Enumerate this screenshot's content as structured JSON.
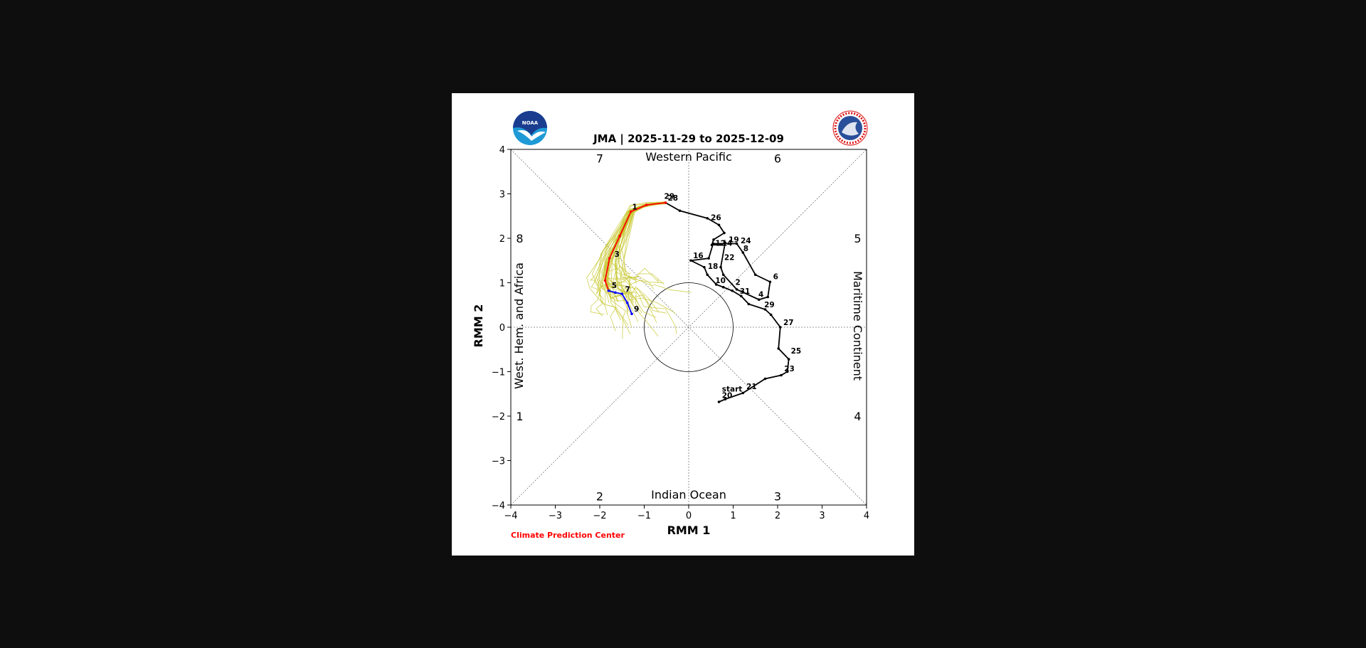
{
  "title": "JMA | 2025-11-29 to 2025-12-09",
  "credit": "Climate Prediction Center",
  "logos": {
    "left": "noaa-logo",
    "left_text": "NOAA",
    "right": "nws-logo",
    "right_text": "NATIONAL WEATHER SERVICE"
  },
  "colors": {
    "observed": "#000000",
    "ensemble": "#c8c832",
    "forecast_early": "#ff0000",
    "forecast_late": "#0000ff",
    "credit": "#ff0000"
  },
  "chart_data": {
    "type": "line",
    "title": "JMA | 2025-11-29 to 2025-12-09",
    "xlabel": "RMM 1",
    "ylabel": "RMM 2",
    "xlim": [
      -4,
      4
    ],
    "ylim": [
      -4,
      4
    ],
    "xticks": [
      "−4",
      "−3",
      "−2",
      "−1",
      "0",
      "1",
      "2",
      "3",
      "4"
    ],
    "yticks": [
      "−4",
      "−3",
      "−2",
      "−1",
      "0",
      "1",
      "2",
      "3",
      "4"
    ],
    "grid": "dotted diagonals and axes",
    "unit_circle_radius": 1,
    "phase_numbers": [
      {
        "label": "1",
        "x": -3.8,
        "y": -2.0
      },
      {
        "label": "2",
        "x": -2.0,
        "y": -3.8
      },
      {
        "label": "3",
        "x": 2.0,
        "y": -3.8
      },
      {
        "label": "4",
        "x": 3.8,
        "y": -2.0
      },
      {
        "label": "5",
        "x": 3.8,
        "y": 2.0
      },
      {
        "label": "6",
        "x": 2.0,
        "y": 3.8
      },
      {
        "label": "7",
        "x": -2.0,
        "y": 3.8
      },
      {
        "label": "8",
        "x": -3.8,
        "y": 2.0
      }
    ],
    "regions": {
      "top": "Western Pacific",
      "bottom": "Indian Ocean",
      "left": "West. Hem. and Africa",
      "right": "Maritime Continent"
    },
    "observed": {
      "points": [
        [
          0.68,
          -1.68
        ],
        [
          0.82,
          -1.62
        ],
        [
          1.22,
          -1.48
        ],
        [
          1.72,
          -1.16
        ],
        [
          2.08,
          -1.08
        ],
        [
          2.22,
          -1.0
        ],
        [
          2.25,
          -0.72
        ],
        [
          2.02,
          -0.48
        ],
        [
          2.06,
          0.0
        ],
        [
          1.85,
          0.28
        ],
        [
          1.72,
          0.4
        ],
        [
          1.35,
          0.52
        ],
        [
          1.18,
          0.7
        ],
        [
          0.98,
          0.82
        ],
        [
          0.78,
          0.9
        ],
        [
          0.62,
          0.96
        ],
        [
          0.42,
          1.18
        ],
        [
          0.35,
          1.35
        ],
        [
          0.05,
          1.5
        ],
        [
          0.45,
          1.55
        ],
        [
          0.55,
          1.88
        ],
        [
          1.08,
          1.88
        ],
        [
          1.22,
          1.68
        ],
        [
          1.5,
          1.18
        ],
        [
          1.83,
          1.02
        ],
        [
          1.78,
          0.68
        ],
        [
          1.58,
          0.62
        ],
        [
          1.08,
          0.85
        ],
        [
          0.78,
          1.18
        ],
        [
          0.72,
          1.35
        ],
        [
          0.82,
          1.9
        ],
        [
          0.72,
          1.86
        ],
        [
          0.52,
          1.85
        ],
        [
          0.56,
          1.97
        ],
        [
          0.8,
          2.12
        ],
        [
          0.68,
          2.3
        ],
        [
          0.42,
          2.45
        ],
        [
          -0.2,
          2.62
        ],
        [
          -0.52,
          2.8
        ]
      ],
      "labels": [
        {
          "text": "start",
          "x": 0.7,
          "y": -1.48
        },
        {
          "text": "20",
          "x": 0.7,
          "y": -1.62
        },
        {
          "text": "21",
          "x": 1.25,
          "y": -1.42
        },
        {
          "text": "23",
          "x": 2.1,
          "y": -1.02
        },
        {
          "text": "25",
          "x": 2.25,
          "y": -0.62
        },
        {
          "text": "27",
          "x": 2.08,
          "y": 0.02
        },
        {
          "text": "29",
          "x": 1.65,
          "y": 0.42
        },
        {
          "text": "31",
          "x": 1.1,
          "y": 0.72
        },
        {
          "text": "2",
          "x": 1.0,
          "y": 0.92
        },
        {
          "text": "4",
          "x": 1.52,
          "y": 0.65
        },
        {
          "text": "6",
          "x": 1.85,
          "y": 1.05
        },
        {
          "text": "8",
          "x": 1.18,
          "y": 1.68
        },
        {
          "text": "10",
          "x": 0.55,
          "y": 0.96
        },
        {
          "text": "12",
          "x": 0.55,
          "y": 1.8
        },
        {
          "text": "14",
          "x": 0.7,
          "y": 1.8
        },
        {
          "text": "16",
          "x": 0.05,
          "y": 1.52
        },
        {
          "text": "18",
          "x": 0.38,
          "y": 1.28
        },
        {
          "text": "22",
          "x": 0.75,
          "y": 1.48
        },
        {
          "text": "19",
          "x": 0.85,
          "y": 1.88
        },
        {
          "text": "24",
          "x": 1.12,
          "y": 1.86
        },
        {
          "text": "26",
          "x": 0.45,
          "y": 2.38
        },
        {
          "text": "28",
          "x": -0.52,
          "y": 2.82
        },
        {
          "text": "29",
          "x": -0.6,
          "y": 2.86
        }
      ]
    },
    "forecast": {
      "early_points": [
        [
          -0.52,
          2.8
        ],
        [
          -0.95,
          2.75
        ],
        [
          -1.3,
          2.6
        ],
        [
          -1.55,
          2.05
        ],
        [
          -1.78,
          1.55
        ],
        [
          -1.88,
          1.05
        ],
        [
          -1.8,
          0.82
        ]
      ],
      "late_points": [
        [
          -1.8,
          0.82
        ],
        [
          -1.65,
          0.78
        ],
        [
          -1.5,
          0.75
        ],
        [
          -1.38,
          0.55
        ],
        [
          -1.28,
          0.3
        ]
      ],
      "labels": [
        {
          "text": "1",
          "x": -1.32,
          "y": 2.62
        },
        {
          "text": "3",
          "x": -1.72,
          "y": 1.55
        },
        {
          "text": "5",
          "x": -1.78,
          "y": 0.85
        },
        {
          "text": "7",
          "x": -1.48,
          "y": 0.76
        },
        {
          "text": "9",
          "x": -1.28,
          "y": 0.32
        }
      ]
    },
    "ensemble_count": 40
  }
}
